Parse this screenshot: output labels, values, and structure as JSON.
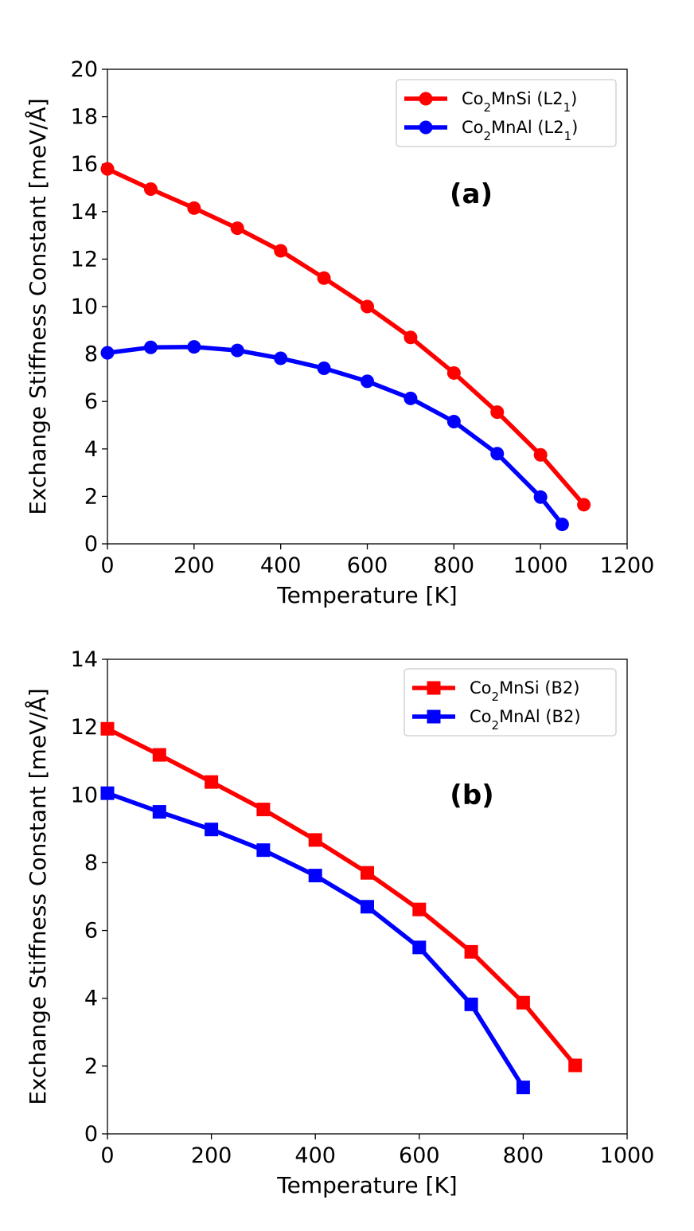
{
  "figure": {
    "colors": {
      "red": "#ff0000",
      "blue": "#0000ff",
      "axes": "#000000",
      "legend_border": "#cccccc"
    }
  },
  "chart_data": [
    {
      "type": "line",
      "panel_label": "(a)",
      "title": "",
      "xlabel": "Temperature [K]",
      "ylabel": "Exchange Stiffness Constant [meV/Å]",
      "xlim": [
        0,
        1200
      ],
      "ylim": [
        0,
        20
      ],
      "xticks": [
        0,
        200,
        400,
        600,
        800,
        1000,
        1200
      ],
      "yticks": [
        0,
        2,
        4,
        6,
        8,
        10,
        12,
        14,
        16,
        18,
        20
      ],
      "grid": false,
      "legend_position": "top-right",
      "series": [
        {
          "name": "Co2MnSi (L21)",
          "legend": {
            "base": "Co",
            "sub1": "2",
            "mid": "MnSi (L2",
            "sub2": "1",
            "end": ")"
          },
          "color": "#ff0000",
          "marker": "circle",
          "x": [
            0,
            100,
            200,
            300,
            400,
            500,
            600,
            700,
            800,
            900,
            1000,
            1100
          ],
          "y": [
            15.8,
            14.95,
            14.15,
            13.3,
            12.35,
            11.2,
            10.0,
            8.7,
            7.2,
            5.55,
            3.75,
            1.65
          ]
        },
        {
          "name": "Co2MnAl (L21)",
          "legend": {
            "base": "Co",
            "sub1": "2",
            "mid": "MnAl (L2",
            "sub2": "1",
            "end": ")"
          },
          "color": "#0000ff",
          "marker": "circle",
          "x": [
            0,
            100,
            200,
            300,
            400,
            500,
            600,
            700,
            800,
            900,
            1000,
            1050
          ],
          "y": [
            8.05,
            8.28,
            8.3,
            8.15,
            7.82,
            7.4,
            6.85,
            6.13,
            5.15,
            3.8,
            1.97,
            0.82
          ]
        }
      ]
    },
    {
      "type": "line",
      "panel_label": "(b)",
      "title": "",
      "xlabel": "Temperature [K]",
      "ylabel": "Exchange Stiffness Constant [meV/Å]",
      "xlim": [
        0,
        1000
      ],
      "ylim": [
        0,
        14
      ],
      "xticks": [
        0,
        200,
        400,
        600,
        800,
        1000
      ],
      "yticks": [
        0,
        2,
        4,
        6,
        8,
        10,
        12,
        14
      ],
      "grid": false,
      "legend_position": "top-right",
      "series": [
        {
          "name": "Co2MnSi (B2)",
          "legend": {
            "base": "Co",
            "sub1": "2",
            "mid": "MnSi (B2)",
            "sub2": "",
            "end": ""
          },
          "color": "#ff0000",
          "marker": "square",
          "x": [
            0,
            100,
            200,
            300,
            400,
            500,
            600,
            700,
            800,
            900
          ],
          "y": [
            11.95,
            11.18,
            10.38,
            9.57,
            8.67,
            7.7,
            6.62,
            5.37,
            3.87,
            2.02
          ]
        },
        {
          "name": "Co2MnAl (B2)",
          "legend": {
            "base": "Co",
            "sub1": "2",
            "mid": "MnAl (B2)",
            "sub2": "",
            "end": ""
          },
          "color": "#0000ff",
          "marker": "square",
          "x": [
            0,
            100,
            200,
            300,
            400,
            500,
            600,
            700,
            800
          ],
          "y": [
            10.05,
            9.5,
            8.98,
            8.37,
            7.62,
            6.7,
            5.5,
            3.82,
            1.37
          ]
        }
      ]
    }
  ]
}
